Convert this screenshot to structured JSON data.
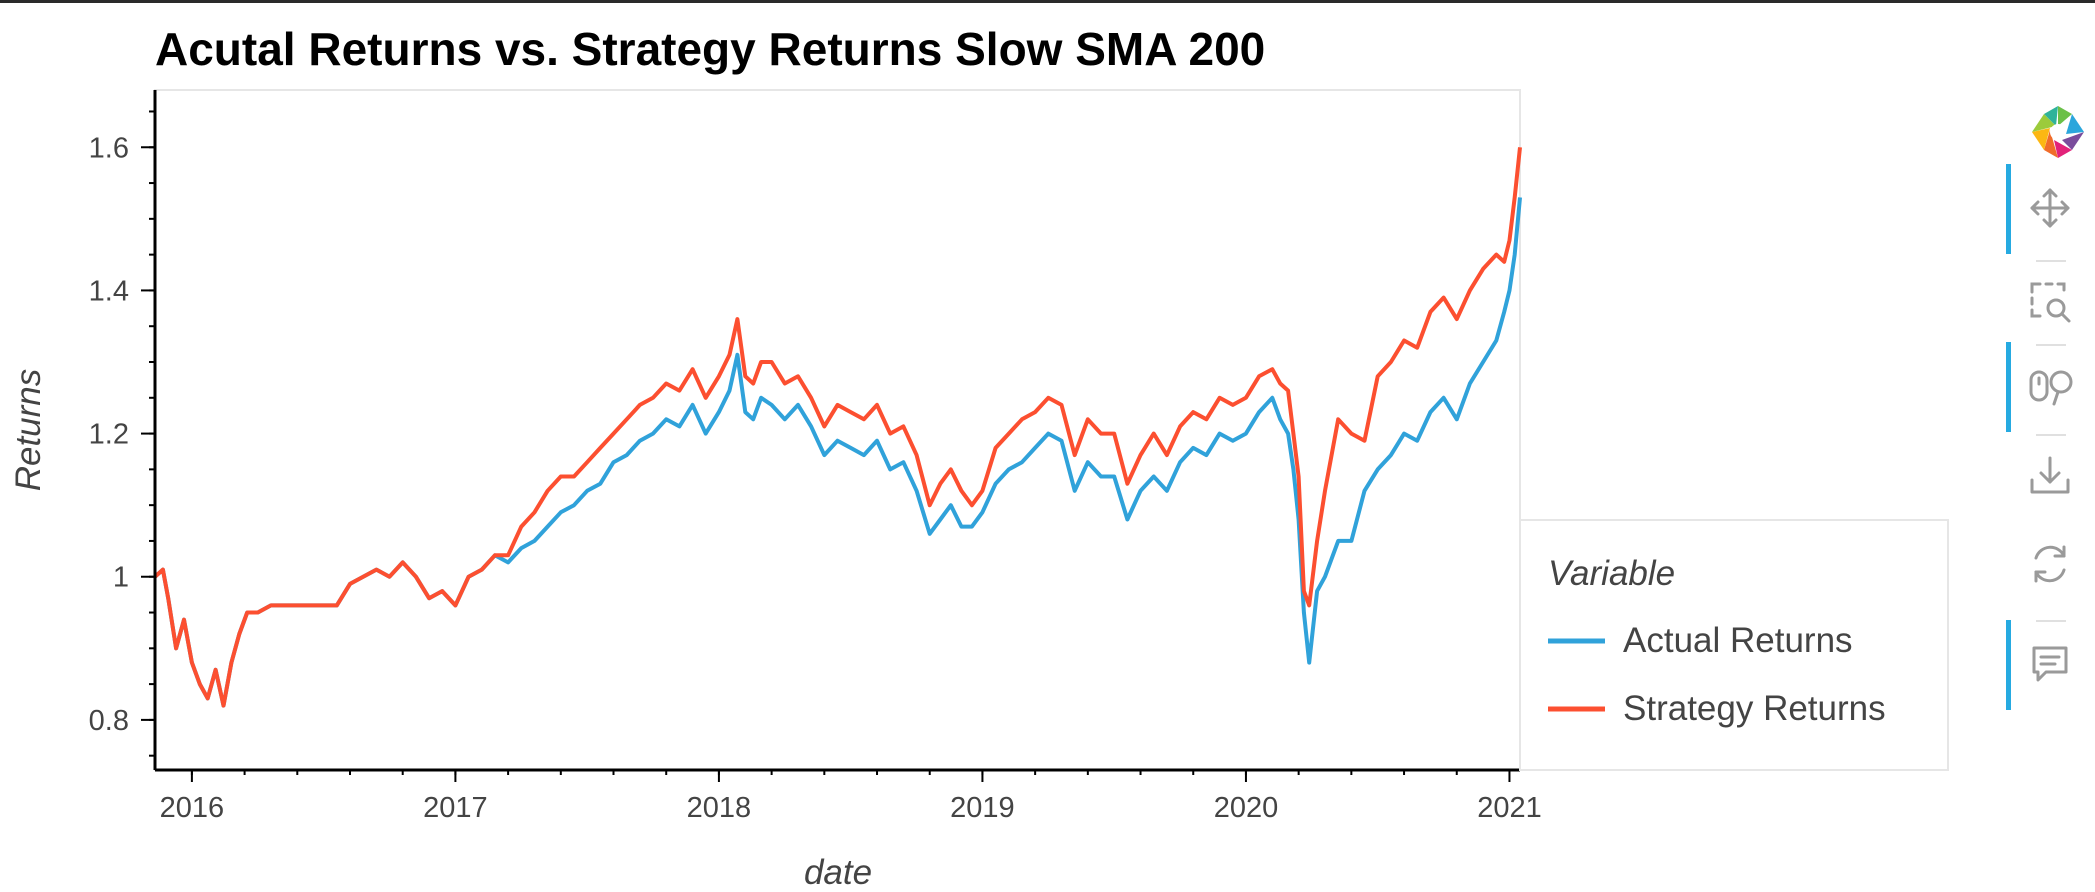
{
  "chart_data": {
    "type": "line",
    "title": "Acutal Returns vs. Strategy Returns Slow SMA 200",
    "xlabel": "date",
    "ylabel": "Returns",
    "xlim": [
      2015.86,
      2021.04
    ],
    "ylim": [
      0.73,
      1.68
    ],
    "xticks": [
      2016,
      2017,
      2018,
      2019,
      2020,
      2021
    ],
    "xtick_labels": [
      "2016",
      "2017",
      "2018",
      "2019",
      "2020",
      "2021"
    ],
    "yticks": [
      0.8,
      1.0,
      1.2,
      1.4,
      1.6
    ],
    "ytick_labels": [
      "0.8",
      "1",
      "1.2",
      "1.4",
      "1.6"
    ],
    "grid": false,
    "legend": {
      "title": "Variable",
      "placement": "right"
    },
    "series": [
      {
        "name": "Actual Returns",
        "color": "#30a2da",
        "x": [
          2015.86,
          2015.89,
          2015.91,
          2015.94,
          2015.97,
          2016.0,
          2016.03,
          2016.06,
          2016.09,
          2016.12,
          2016.15,
          2016.18,
          2016.21,
          2016.25,
          2016.3,
          2016.55,
          2016.6,
          2016.7,
          2016.75,
          2016.8,
          2016.85,
          2016.9,
          2016.95,
          2017.0,
          2017.05,
          2017.1,
          2017.15,
          2017.2,
          2017.25,
          2017.3,
          2017.35,
          2017.4,
          2017.45,
          2017.5,
          2017.55,
          2017.6,
          2017.65,
          2017.7,
          2017.75,
          2017.8,
          2017.85,
          2017.9,
          2017.95,
          2018.0,
          2018.04,
          2018.07,
          2018.1,
          2018.13,
          2018.16,
          2018.2,
          2018.25,
          2018.3,
          2018.35,
          2018.4,
          2018.45,
          2018.5,
          2018.55,
          2018.6,
          2018.65,
          2018.7,
          2018.75,
          2018.8,
          2018.84,
          2018.88,
          2018.92,
          2018.96,
          2019.0,
          2019.05,
          2019.1,
          2019.15,
          2019.2,
          2019.25,
          2019.3,
          2019.35,
          2019.4,
          2019.45,
          2019.5,
          2019.55,
          2019.6,
          2019.65,
          2019.7,
          2019.75,
          2019.8,
          2019.85,
          2019.9,
          2019.95,
          2020.0,
          2020.05,
          2020.1,
          2020.13,
          2020.16,
          2020.18,
          2020.2,
          2020.22,
          2020.24,
          2020.27,
          2020.3,
          2020.35,
          2020.4,
          2020.45,
          2020.5,
          2020.55,
          2020.6,
          2020.65,
          2020.7,
          2020.75,
          2020.8,
          2020.85,
          2020.9,
          2020.95,
          2020.98,
          2021.0,
          2021.02,
          2021.04
        ],
        "y": [
          1.0,
          1.01,
          0.97,
          0.9,
          0.94,
          0.88,
          0.85,
          0.83,
          0.87,
          0.82,
          0.88,
          0.92,
          0.95,
          0.95,
          0.96,
          0.96,
          0.99,
          1.01,
          1.0,
          1.02,
          1.0,
          0.97,
          0.98,
          0.96,
          1.0,
          1.01,
          1.03,
          1.02,
          1.04,
          1.05,
          1.07,
          1.09,
          1.1,
          1.12,
          1.13,
          1.16,
          1.17,
          1.19,
          1.2,
          1.22,
          1.21,
          1.24,
          1.2,
          1.23,
          1.26,
          1.31,
          1.23,
          1.22,
          1.25,
          1.24,
          1.22,
          1.24,
          1.21,
          1.17,
          1.19,
          1.18,
          1.17,
          1.19,
          1.15,
          1.16,
          1.12,
          1.06,
          1.08,
          1.1,
          1.07,
          1.07,
          1.09,
          1.13,
          1.15,
          1.16,
          1.18,
          1.2,
          1.19,
          1.12,
          1.16,
          1.14,
          1.14,
          1.08,
          1.12,
          1.14,
          1.12,
          1.16,
          1.18,
          1.17,
          1.2,
          1.19,
          1.2,
          1.23,
          1.25,
          1.22,
          1.2,
          1.15,
          1.08,
          0.95,
          0.88,
          0.98,
          1.0,
          1.05,
          1.05,
          1.12,
          1.15,
          1.17,
          1.2,
          1.19,
          1.23,
          1.25,
          1.22,
          1.27,
          1.3,
          1.33,
          1.37,
          1.4,
          1.45,
          1.53
        ]
      },
      {
        "name": "Strategy Returns",
        "color": "#fc4f30",
        "x": [
          2015.86,
          2015.89,
          2015.91,
          2015.94,
          2015.97,
          2016.0,
          2016.03,
          2016.06,
          2016.09,
          2016.12,
          2016.15,
          2016.18,
          2016.21,
          2016.25,
          2016.3,
          2016.55,
          2016.6,
          2016.7,
          2016.75,
          2016.8,
          2016.85,
          2016.9,
          2016.95,
          2017.0,
          2017.05,
          2017.1,
          2017.15,
          2017.2,
          2017.25,
          2017.3,
          2017.35,
          2017.4,
          2017.45,
          2017.5,
          2017.55,
          2017.6,
          2017.65,
          2017.7,
          2017.75,
          2017.8,
          2017.85,
          2017.9,
          2017.95,
          2018.0,
          2018.04,
          2018.07,
          2018.1,
          2018.13,
          2018.16,
          2018.2,
          2018.25,
          2018.3,
          2018.35,
          2018.4,
          2018.45,
          2018.5,
          2018.55,
          2018.6,
          2018.65,
          2018.7,
          2018.75,
          2018.8,
          2018.84,
          2018.88,
          2018.92,
          2018.96,
          2019.0,
          2019.05,
          2019.1,
          2019.15,
          2019.2,
          2019.25,
          2019.3,
          2019.35,
          2019.4,
          2019.45,
          2019.5,
          2019.55,
          2019.6,
          2019.65,
          2019.7,
          2019.75,
          2019.8,
          2019.85,
          2019.9,
          2019.95,
          2020.0,
          2020.05,
          2020.1,
          2020.13,
          2020.16,
          2020.18,
          2020.2,
          2020.22,
          2020.24,
          2020.27,
          2020.3,
          2020.35,
          2020.4,
          2020.45,
          2020.5,
          2020.55,
          2020.6,
          2020.65,
          2020.7,
          2020.75,
          2020.8,
          2020.85,
          2020.9,
          2020.95,
          2020.98,
          2021.0,
          2021.02,
          2021.04
        ],
        "y": [
          1.0,
          1.01,
          0.97,
          0.9,
          0.94,
          0.88,
          0.85,
          0.83,
          0.87,
          0.82,
          0.88,
          0.92,
          0.95,
          0.95,
          0.96,
          0.96,
          0.99,
          1.01,
          1.0,
          1.02,
          1.0,
          0.97,
          0.98,
          0.96,
          1.0,
          1.01,
          1.03,
          1.03,
          1.07,
          1.09,
          1.12,
          1.14,
          1.14,
          1.16,
          1.18,
          1.2,
          1.22,
          1.24,
          1.25,
          1.27,
          1.26,
          1.29,
          1.25,
          1.28,
          1.31,
          1.36,
          1.28,
          1.27,
          1.3,
          1.3,
          1.27,
          1.28,
          1.25,
          1.21,
          1.24,
          1.23,
          1.22,
          1.24,
          1.2,
          1.21,
          1.17,
          1.1,
          1.13,
          1.15,
          1.12,
          1.1,
          1.12,
          1.18,
          1.2,
          1.22,
          1.23,
          1.25,
          1.24,
          1.17,
          1.22,
          1.2,
          1.2,
          1.13,
          1.17,
          1.2,
          1.17,
          1.21,
          1.23,
          1.22,
          1.25,
          1.24,
          1.25,
          1.28,
          1.29,
          1.27,
          1.26,
          1.2,
          1.14,
          0.98,
          0.96,
          1.05,
          1.12,
          1.22,
          1.2,
          1.19,
          1.28,
          1.3,
          1.33,
          1.32,
          1.37,
          1.39,
          1.36,
          1.4,
          1.43,
          1.45,
          1.44,
          1.47,
          1.53,
          1.6
        ]
      }
    ]
  }
}
